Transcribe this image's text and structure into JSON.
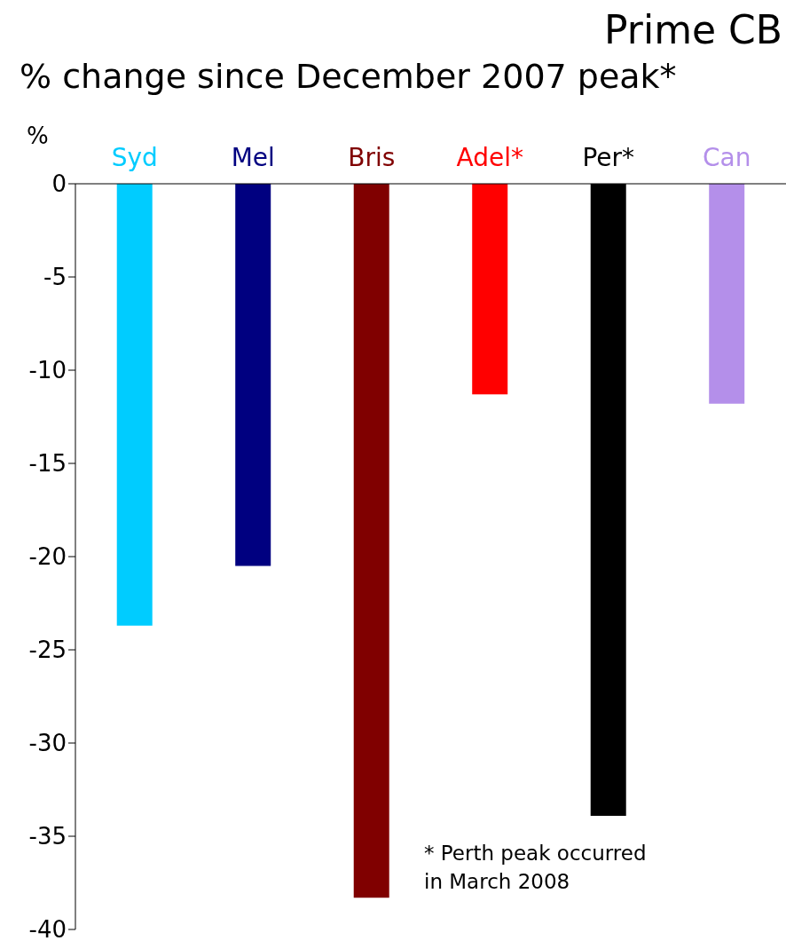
{
  "chart_data": {
    "type": "bar",
    "title": "Prime CB",
    "subtitle": "% change since December 2007 peak*",
    "ylabel": "%",
    "categories": [
      "Syd",
      "Mel",
      "Bris",
      "Adel*",
      "Per*",
      "Can"
    ],
    "values": [
      -23.7,
      -20.5,
      -38.3,
      -11.3,
      -33.9,
      -11.8
    ],
    "colors": [
      "#00ccff",
      "#000080",
      "#800000",
      "#ff0000",
      "#000000",
      "#b48fea"
    ],
    "ylim": [
      -40,
      0
    ],
    "yticks": [
      0,
      -5,
      -10,
      -15,
      -20,
      -25,
      -30,
      -35,
      -40
    ],
    "grid": false,
    "annotations": [
      "* Perth peak occurred\nin March 2008"
    ]
  }
}
